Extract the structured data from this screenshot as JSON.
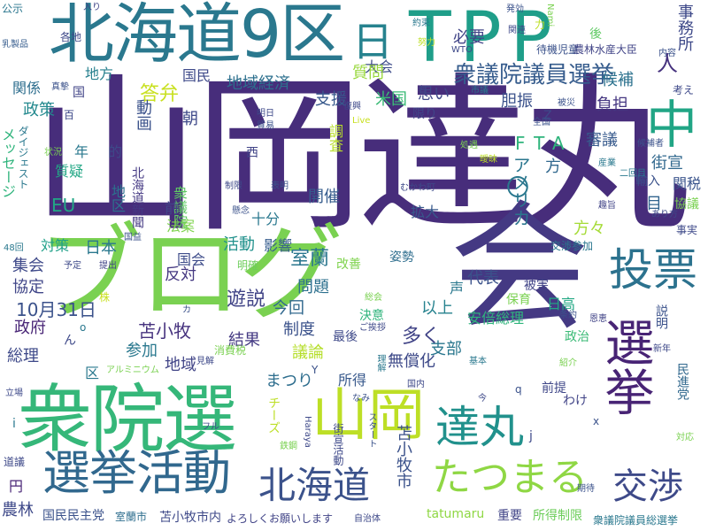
{
  "words": [
    {
      "id": "w0",
      "text": "山岡達丸",
      "color": "#472d7b"
    },
    {
      "id": "w1",
      "text": "ブログ",
      "color": "#7ad151"
    },
    {
      "id": "w2",
      "text": "会",
      "color": "#443983"
    },
    {
      "id": "w3",
      "text": "北海道9区",
      "color": "#2a788e"
    },
    {
      "id": "w4",
      "text": "TPP",
      "color": "#1f9e89"
    },
    {
      "id": "w5",
      "text": "衆院選",
      "color": "#35b779"
    },
    {
      "id": "w6",
      "text": "山岡",
      "color": "#bddf26"
    },
    {
      "id": "w7",
      "text": "達丸",
      "color": "#21918c"
    },
    {
      "id": "w8",
      "text": "選挙活動",
      "color": "#31688e"
    },
    {
      "id": "w9",
      "text": "北海道",
      "color": "#3b528b"
    },
    {
      "id": "w10",
      "text": "たつまる",
      "color": "#8fd744"
    },
    {
      "id": "w11",
      "text": "選挙",
      "color": "#482475"
    },
    {
      "id": "w12",
      "text": "交渉",
      "color": "#3e4a89"
    },
    {
      "id": "w13",
      "text": "投票",
      "color": "#2c728e"
    },
    {
      "id": "w14",
      "text": "中",
      "color": "#21a585"
    },
    {
      "id": "w15",
      "text": "日",
      "color": "#26828e"
    },
    {
      "id": "w16",
      "text": "衆議院議員選挙",
      "color": "#365c8d"
    },
    {
      "id": "w17",
      "text": "事務所",
      "color": "#3e4989"
    },
    {
      "id": "w18",
      "text": "人",
      "color": "#46327e"
    },
    {
      "id": "w19",
      "text": "アメリカ",
      "color": "#2a768e"
    },
    {
      "id": "w20",
      "text": "FTA",
      "color": "#2fb47c"
    },
    {
      "id": "w21",
      "text": "苫小牧市",
      "color": "#3b528b"
    },
    {
      "id": "w22",
      "text": "支援",
      "color": "#38598c"
    },
    {
      "id": "w23",
      "text": "地域経済",
      "color": "#2d708e"
    },
    {
      "id": "w24",
      "text": "大会",
      "color": "#3e4c8a"
    },
    {
      "id": "w25",
      "text": "必要",
      "color": "#414487"
    },
    {
      "id": "w26",
      "text": "質問",
      "color": "#99d83d"
    },
    {
      "id": "w27",
      "text": "国民",
      "color": "#3e4989"
    },
    {
      "id": "w28",
      "text": "関係",
      "color": "#2e6e8e"
    },
    {
      "id": "w29",
      "text": "地方",
      "color": "#27808e"
    },
    {
      "id": "w30",
      "text": "答弁",
      "color": "#c8e020"
    },
    {
      "id": "w31",
      "text": "政策",
      "color": "#23898e"
    },
    {
      "id": "w32",
      "text": "米国",
      "color": "#3aba76"
    },
    {
      "id": "w33",
      "text": "思い",
      "color": "#3f4788"
    },
    {
      "id": "w34",
      "text": "胆振",
      "color": "#3b528b"
    },
    {
      "id": "w35",
      "text": "負担",
      "color": "#453781"
    },
    {
      "id": "w36",
      "text": "候補",
      "color": "#2c728e"
    },
    {
      "id": "w37",
      "text": "審議",
      "color": "#375a8c"
    },
    {
      "id": "w38",
      "text": "街宣",
      "color": "#31688e"
    },
    {
      "id": "w39",
      "text": "関税",
      "color": "#3a548c"
    },
    {
      "id": "w40",
      "text": "協議",
      "color": "#7ad151"
    },
    {
      "id": "w41",
      "text": "地区",
      "color": "#2c728e"
    },
    {
      "id": "w42",
      "text": "北海道新聞",
      "color": "#443983"
    },
    {
      "id": "w43",
      "text": "衆議院",
      "color": "#5ec962"
    },
    {
      "id": "w44",
      "text": "開催",
      "color": "#365c8d"
    },
    {
      "id": "w45",
      "text": "拡大",
      "color": "#38598c"
    },
    {
      "id": "w46",
      "text": "方々",
      "color": "#a5db36"
    },
    {
      "id": "w47",
      "text": "日本",
      "color": "#2a788e"
    },
    {
      "id": "w48",
      "text": "活動",
      "color": "#21918c"
    },
    {
      "id": "w49",
      "text": "影響",
      "color": "#365c8d"
    },
    {
      "id": "w50",
      "text": "室蘭",
      "color": "#2a768e"
    },
    {
      "id": "w51",
      "text": "集会",
      "color": "#3e4989"
    },
    {
      "id": "w52",
      "text": "協定",
      "color": "#404688"
    },
    {
      "id": "w53",
      "text": "10月31日",
      "color": "#3b528b"
    },
    {
      "id": "w54",
      "text": "政府",
      "color": "#482576"
    },
    {
      "id": "w55",
      "text": "総理",
      "color": "#3e4989"
    },
    {
      "id": "w56",
      "text": "反対",
      "color": "#453882"
    },
    {
      "id": "w57",
      "text": "遊説",
      "color": "#414487"
    },
    {
      "id": "w58",
      "text": "苫小牧",
      "color": "#46327e"
    },
    {
      "id": "w59",
      "text": "参加",
      "color": "#2a788e"
    },
    {
      "id": "w60",
      "text": "地域",
      "color": "#414487"
    },
    {
      "id": "w61",
      "text": "結果",
      "color": "#443a83"
    },
    {
      "id": "w62",
      "text": "問題",
      "color": "#2d708e"
    },
    {
      "id": "w63",
      "text": "今回",
      "color": "#31688e"
    },
    {
      "id": "w64",
      "text": "制度",
      "color": "#3b528b"
    },
    {
      "id": "w65",
      "text": "議論",
      "color": "#b5de2b"
    },
    {
      "id": "w66",
      "text": "まつり",
      "color": "#2e6e8e"
    },
    {
      "id": "w67",
      "text": "所得",
      "color": "#38598c"
    },
    {
      "id": "w68",
      "text": "無償化",
      "color": "#3e4a89"
    },
    {
      "id": "w69",
      "text": "多く",
      "color": "#414487"
    },
    {
      "id": "w70",
      "text": "支部",
      "color": "#2a778e"
    },
    {
      "id": "w71",
      "text": "代表",
      "color": "#3b528b"
    },
    {
      "id": "w72",
      "text": "声",
      "color": "#2a788e"
    },
    {
      "id": "w73",
      "text": "以上",
      "color": "#26828e"
    },
    {
      "id": "w74",
      "text": "国会",
      "color": "#3e4c8a"
    },
    {
      "id": "w75",
      "text": "安倍総理",
      "color": "#2fb47c"
    },
    {
      "id": "w76",
      "text": "日高",
      "color": "#22a884"
    },
    {
      "id": "w77",
      "text": "政治",
      "color": "#3aba76"
    },
    {
      "id": "w78",
      "text": "前提",
      "color": "#3f4788"
    },
    {
      "id": "w79",
      "text": "農林",
      "color": "#3e4989"
    },
    {
      "id": "w80",
      "text": "国民民主党",
      "color": "#3b528b"
    },
    {
      "id": "w81",
      "text": "室蘭市",
      "color": "#2e6e8e"
    },
    {
      "id": "w82",
      "text": "苫小牧市内",
      "color": "#3e4989"
    },
    {
      "id": "w83",
      "text": "よろしくお願いします",
      "color": "#414487"
    },
    {
      "id": "w84",
      "text": "tatumaru",
      "color": "#8fd744"
    },
    {
      "id": "w85",
      "text": "重要",
      "color": "#414487"
    },
    {
      "id": "w86",
      "text": "所得制限",
      "color": "#6ccd5a"
    },
    {
      "id": "w87",
      "text": "衆議院議員総選挙",
      "color": "#2a788e"
    },
    {
      "id": "w88",
      "text": "メッセージ",
      "color": "#2fb47c"
    },
    {
      "id": "w89",
      "text": "EU",
      "color": "#21a685"
    },
    {
      "id": "w90",
      "text": "対策",
      "color": "#1fa088"
    },
    {
      "id": "w91",
      "text": "法案",
      "color": "#7fd34e"
    },
    {
      "id": "w92",
      "text": "十分",
      "color": "#2a788e"
    },
    {
      "id": "w93",
      "text": "動画",
      "color": "#3b528b"
    },
    {
      "id": "w94",
      "text": "朝",
      "color": "#3e4989"
    },
    {
      "id": "w95",
      "text": "調査",
      "color": "#b8de29"
    },
    {
      "id": "w96",
      "text": "質疑",
      "color": "#22a785"
    },
    {
      "id": "w97",
      "text": "年",
      "color": "#2a788e"
    },
    {
      "id": "w98",
      "text": "的",
      "color": "#3e4989"
    },
    {
      "id": "w99",
      "text": "前",
      "color": "#404688"
    },
    {
      "id": "w100",
      "text": "目",
      "color": "#32658e"
    },
    {
      "id": "w101",
      "text": "方",
      "color": "#31688e"
    },
    {
      "id": "w102",
      "text": "輸入",
      "color": "#3b528b"
    },
    {
      "id": "w103",
      "text": "交渉参加",
      "color": "#2a778e"
    },
    {
      "id": "w104",
      "text": "事実",
      "color": "#3e4989"
    },
    {
      "id": "w105",
      "text": "説明",
      "color": "#3b528b"
    },
    {
      "id": "w106",
      "text": "民進党",
      "color": "#31688e"
    },
    {
      "id": "w107",
      "text": "保育",
      "color": "#7ad151"
    },
    {
      "id": "w108",
      "text": "被害",
      "color": "#414487"
    },
    {
      "id": "w109",
      "text": "決意",
      "color": "#2fb47c"
    },
    {
      "id": "w110",
      "text": "改善",
      "color": "#7fd34e"
    },
    {
      "id": "w111",
      "text": "姿勢",
      "color": "#2e6e8e"
    },
    {
      "id": "w112",
      "text": "チーズ",
      "color": "#bddf26"
    },
    {
      "id": "w113",
      "text": "最後",
      "color": "#3e4989"
    },
    {
      "id": "w114",
      "text": "消費税",
      "color": "#7ad151"
    },
    {
      "id": "w115",
      "text": "明確",
      "color": "#6ccd5a"
    },
    {
      "id": "w116",
      "text": "円",
      "color": "#482576"
    },
    {
      "id": "w117",
      "text": "区",
      "color": "#2a788e"
    },
    {
      "id": "w118",
      "text": "公示",
      "color": "#2a768e"
    },
    {
      "id": "w119",
      "text": "乳製品",
      "color": "#365c8d"
    },
    {
      "id": "w120",
      "text": "各地",
      "color": "#3e4989"
    },
    {
      "id": "w121",
      "text": "入り",
      "color": "#404688"
    },
    {
      "id": "w122",
      "text": "約束",
      "color": "#2a788e"
    },
    {
      "id": "w123",
      "text": "発効",
      "color": "#3b528b"
    },
    {
      "id": "w124",
      "text": "関連",
      "color": "#3e4989"
    },
    {
      "id": "w125",
      "text": "待機児童",
      "color": "#3b528b"
    },
    {
      "id": "w126",
      "text": "農林水産大臣",
      "color": "#414487"
    },
    {
      "id": "w127",
      "text": "後",
      "color": "#5ec962"
    },
    {
      "id": "w128",
      "text": "内容",
      "color": "#3b528b"
    },
    {
      "id": "w129",
      "text": "考え",
      "color": "#3e4989"
    },
    {
      "id": "w130",
      "text": "真摯",
      "color": "#3b528b"
    },
    {
      "id": "w131",
      "text": "国",
      "color": "#414487"
    },
    {
      "id": "w132",
      "text": "百",
      "color": "#3e4989"
    },
    {
      "id": "w133",
      "text": "者",
      "color": "#414487"
    },
    {
      "id": "w134",
      "text": "限り",
      "color": "#404688"
    },
    {
      "id": "w135",
      "text": "市議",
      "color": "#2a788e"
    },
    {
      "id": "w136",
      "text": "被災",
      "color": "#3b528b"
    },
    {
      "id": "w137",
      "text": "Z",
      "color": "#3e4989"
    },
    {
      "id": "w138",
      "text": "全国",
      "color": "#3b528b"
    },
    {
      "id": "w139",
      "text": "処遇",
      "color": "#7ad151"
    },
    {
      "id": "w140",
      "text": "復興",
      "color": "#3e4989"
    },
    {
      "id": "w141",
      "text": "貿易",
      "color": "#3b528b"
    },
    {
      "id": "w142",
      "text": "明日",
      "color": "#3e4989"
    },
    {
      "id": "w143",
      "text": "Live",
      "color": "#c8e020"
    },
    {
      "id": "w144",
      "text": "ダイジェスト",
      "color": "#2a788e"
    },
    {
      "id": "w145",
      "text": "状況",
      "color": "#7ad151"
    },
    {
      "id": "w146",
      "text": "西",
      "color": "#414487"
    },
    {
      "id": "w147",
      "text": "産業",
      "color": "#2a788e"
    },
    {
      "id": "w148",
      "text": "曖昧",
      "color": "#bddf26"
    },
    {
      "id": "w149",
      "text": "候補者",
      "color": "#3b528b"
    },
    {
      "id": "w150",
      "text": "二回目",
      "color": "#2a788e"
    },
    {
      "id": "w151",
      "text": "制限",
      "color": "#3e4989"
    },
    {
      "id": "w152",
      "text": "表明",
      "color": "#3b528b"
    },
    {
      "id": "w153",
      "text": "むかわ町",
      "color": "#3e4989"
    },
    {
      "id": "w154",
      "text": "懸念",
      "color": "#3b528b"
    },
    {
      "id": "w155",
      "text": "趣旨",
      "color": "#414487"
    },
    {
      "id": "w156",
      "text": "あり方",
      "color": "#3e4989"
    },
    {
      "id": "w157",
      "text": "48回",
      "color": "#2a788e"
    },
    {
      "id": "w158",
      "text": "国益",
      "color": "#3b528b"
    },
    {
      "id": "w159",
      "text": "予定",
      "color": "#3e4989"
    },
    {
      "id": "w160",
      "text": "提出",
      "color": "#414487"
    },
    {
      "id": "w161",
      "text": "株",
      "color": "#c8e020"
    },
    {
      "id": "w162",
      "text": "ん",
      "color": "#3e4989"
    },
    {
      "id": "w163",
      "text": "o",
      "color": "#2a788e"
    },
    {
      "id": "w164",
      "text": "カ",
      "color": "#3b528b"
    },
    {
      "id": "w165",
      "text": "総会",
      "color": "#7ad151"
    },
    {
      "id": "w166",
      "text": "ご挨拶",
      "color": "#3e4989"
    },
    {
      "id": "w167",
      "text": "条約",
      "color": "#3b528b"
    },
    {
      "id": "w168",
      "text": "恩恵",
      "color": "#414487"
    },
    {
      "id": "w169",
      "text": "紹介",
      "color": "#7ad151"
    },
    {
      "id": "w170",
      "text": "新年",
      "color": "#3e4989"
    },
    {
      "id": "w171",
      "text": "基本",
      "color": "#2a788e"
    },
    {
      "id": "w172",
      "text": "アルミニウム",
      "color": "#7ad151"
    },
    {
      "id": "w173",
      "text": "見解",
      "color": "#3e4989"
    },
    {
      "id": "w174",
      "text": "Y",
      "color": "#3b528b"
    },
    {
      "id": "w175",
      "text": "理解",
      "color": "#2a788e"
    },
    {
      "id": "w176",
      "text": "国内",
      "color": "#3e4989"
    },
    {
      "id": "w177",
      "text": "q",
      "color": "#3b528b"
    },
    {
      "id": "w178",
      "text": "わけ",
      "color": "#414487"
    },
    {
      "id": "w179",
      "text": "今",
      "color": "#3e4989"
    },
    {
      "id": "w180",
      "text": "対応",
      "color": "#7ad151"
    },
    {
      "id": "w181",
      "text": "立場",
      "color": "#3e4989"
    },
    {
      "id": "w182",
      "text": "i",
      "color": "#2a788e"
    },
    {
      "id": "w183",
      "text": "フル",
      "color": "#3e4989"
    },
    {
      "id": "w184",
      "text": "なみ",
      "color": "#3b528b"
    },
    {
      "id": "w185",
      "text": "Haraya",
      "color": "#3e4989"
    },
    {
      "id": "w186",
      "text": "スタート",
      "color": "#3b528b"
    },
    {
      "id": "w187",
      "text": "j",
      "color": "#3e4989"
    },
    {
      "id": "w188",
      "text": "x",
      "color": "#3b528b"
    },
    {
      "id": "w189",
      "text": "街宣活動",
      "color": "#3e4989"
    },
    {
      "id": "w190",
      "text": "鉄鋼",
      "color": "#7ad151"
    },
    {
      "id": "w191",
      "text": "道議",
      "color": "#3e4989"
    },
    {
      "id": "w192",
      "text": "自治体",
      "color": "#3e4989"
    },
    {
      "id": "w193",
      "text": "期待",
      "color": "#3b528b"
    },
    {
      "id": "w194",
      "text": "WTO",
      "color": "#3e4989"
    },
    {
      "id": "w195",
      "text": "Nami",
      "color": "#7ad151"
    },
    {
      "id": "w196",
      "text": "努力",
      "color": "#bddf26"
    },
    {
      "id": "w197",
      "text": "力",
      "color": "#bddf26"
    },
    {
      "id": "w198",
      "text": "〇",
      "color": "#2a788e"
    }
  ]
}
